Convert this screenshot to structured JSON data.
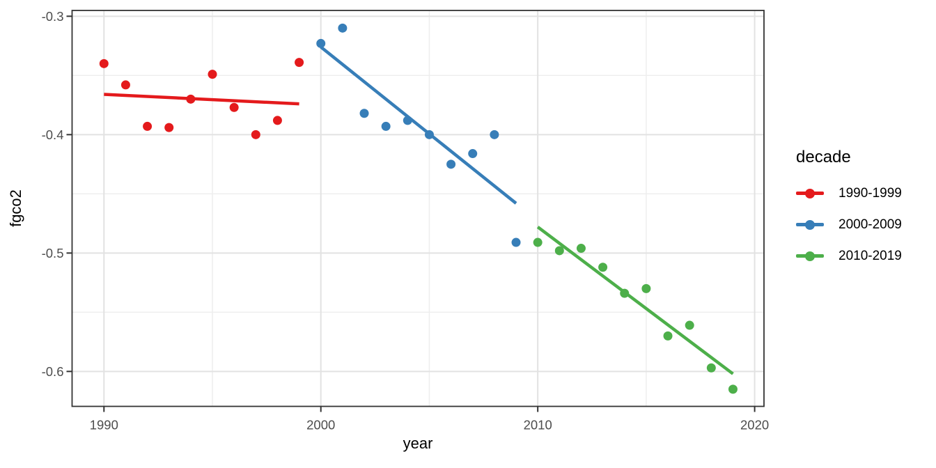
{
  "figure": {
    "background": "#FFFFFF",
    "x_axis_title": "year",
    "y_axis_title": "fgco2",
    "legend": {
      "title": "decade",
      "position": "right",
      "entries": [
        {
          "label": "1990-1999",
          "color": "#E41A1C"
        },
        {
          "label": "2000-2009",
          "color": "#377EB8"
        },
        {
          "label": "2010-2019",
          "color": "#4DAF4A"
        }
      ]
    }
  },
  "chart_data": {
    "type": "scatter",
    "title": "",
    "xlabel": "year",
    "ylabel": "fgco2",
    "grid": true,
    "legend_position": "right",
    "x_domain": [
      1988.53,
      2020.43
    ],
    "y_domain": [
      -0.6295,
      -0.2951
    ],
    "x_ticks": {
      "major": [
        1990,
        2000,
        2010,
        2020
      ],
      "minor": [
        1995,
        2005,
        2015
      ],
      "labels": [
        "1990",
        "2000",
        "2010",
        "2020"
      ]
    },
    "y_ticks": {
      "major": [
        -0.3,
        -0.4,
        -0.5,
        -0.6
      ],
      "minor": [
        -0.35,
        -0.45,
        -0.55
      ],
      "labels": [
        "-0.3",
        "-0.4",
        "-0.5",
        "-0.6"
      ]
    },
    "series": [
      {
        "name": "1990-1999",
        "color": "#E41A1C",
        "x": [
          1990,
          1991,
          1992,
          1993,
          1994,
          1995,
          1996,
          1997,
          1998,
          1999
        ],
        "y": [
          -0.34,
          -0.358,
          -0.393,
          -0.394,
          -0.37,
          -0.349,
          -0.377,
          -0.4,
          -0.388,
          -0.339
        ],
        "trend": {
          "x1": 1990,
          "y1": -0.366,
          "x2": 1999,
          "y2": -0.374
        }
      },
      {
        "name": "2000-2009",
        "color": "#377EB8",
        "x": [
          2000,
          2001,
          2002,
          2003,
          2004,
          2005,
          2006,
          2007,
          2008,
          2009
        ],
        "y": [
          -0.323,
          -0.31,
          -0.382,
          -0.393,
          -0.388,
          -0.4,
          -0.425,
          -0.416,
          -0.4,
          -0.491
        ],
        "trend": {
          "x1": 2000,
          "y1": -0.326,
          "x2": 2009,
          "y2": -0.458
        }
      },
      {
        "name": "2010-2019",
        "color": "#4DAF4A",
        "x": [
          2010,
          2011,
          2012,
          2013,
          2014,
          2015,
          2016,
          2017,
          2018,
          2019
        ],
        "y": [
          -0.491,
          -0.498,
          -0.496,
          -0.512,
          -0.534,
          -0.53,
          -0.57,
          -0.561,
          -0.597,
          -0.615
        ],
        "trend": {
          "x1": 2010,
          "y1": -0.478,
          "x2": 2019,
          "y2": -0.602
        }
      }
    ],
    "style_colors": {
      "panel_border": "#333333",
      "grid_major": "#E2E2E2",
      "grid_minor": "#EDEDED",
      "tick_mark": "#333333",
      "tick_label": "#4D4D4D",
      "axis_title": "#000000"
    }
  }
}
